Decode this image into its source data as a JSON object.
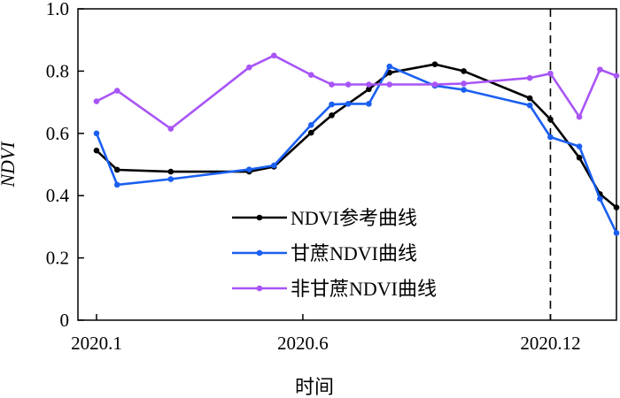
{
  "chart_data": {
    "type": "line",
    "xlabel": "时间",
    "ylabel": "NDVI",
    "ylim": [
      0,
      1.0
    ],
    "xlim": [
      0.55,
      13.6
    ],
    "x_ticks": [
      {
        "label": "2020.1",
        "value": 1
      },
      {
        "label": "2020.6",
        "value": 6
      },
      {
        "label": "2020.12",
        "value": 12
      }
    ],
    "y_ticks": [
      {
        "label": "0",
        "value": 0
      },
      {
        "label": "0.2",
        "value": 0.2
      },
      {
        "label": "0.4",
        "value": 0.4
      },
      {
        "label": "0.6",
        "value": 0.6
      },
      {
        "label": "0.8",
        "value": 0.8
      },
      {
        "label": "1.0",
        "value": 1.0
      }
    ],
    "vline": {
      "x": 12,
      "style": "dashed"
    },
    "grid": false,
    "legend_position": "bottom-center",
    "series": [
      {
        "name": "NDVI参考曲线",
        "color": "#000000",
        "points": [
          [
            1.0,
            0.545
          ],
          [
            1.5,
            0.483
          ],
          [
            2.8,
            0.477
          ],
          [
            4.7,
            0.477
          ],
          [
            5.3,
            0.493
          ],
          [
            6.2,
            0.602
          ],
          [
            6.7,
            0.658
          ],
          [
            7.6,
            0.742
          ],
          [
            8.1,
            0.795
          ],
          [
            9.2,
            0.822
          ],
          [
            9.9,
            0.8
          ],
          [
            11.5,
            0.713
          ],
          [
            12.0,
            0.645
          ],
          [
            12.7,
            0.522
          ],
          [
            13.2,
            0.405
          ],
          [
            13.6,
            0.362
          ]
        ]
      },
      {
        "name": "甘蔗NDVI曲线",
        "color": "#1a5ff0",
        "points": [
          [
            1.0,
            0.6
          ],
          [
            1.5,
            0.435
          ],
          [
            2.8,
            0.453
          ],
          [
            4.7,
            0.484
          ],
          [
            5.3,
            0.497
          ],
          [
            6.2,
            0.627
          ],
          [
            6.7,
            0.693
          ],
          [
            7.1,
            0.695
          ],
          [
            7.6,
            0.695
          ],
          [
            8.1,
            0.815
          ],
          [
            9.2,
            0.753
          ],
          [
            9.9,
            0.74
          ],
          [
            11.5,
            0.69
          ],
          [
            12.0,
            0.588
          ],
          [
            12.7,
            0.558
          ],
          [
            13.2,
            0.39
          ],
          [
            13.6,
            0.28
          ]
        ]
      },
      {
        "name": "非甘蔗NDVI曲线",
        "color": "#a855f7",
        "points": [
          [
            1.0,
            0.703
          ],
          [
            1.5,
            0.737
          ],
          [
            2.8,
            0.615
          ],
          [
            4.7,
            0.812
          ],
          [
            5.3,
            0.85
          ],
          [
            6.2,
            0.788
          ],
          [
            6.7,
            0.757
          ],
          [
            7.1,
            0.757
          ],
          [
            7.6,
            0.757
          ],
          [
            8.1,
            0.757
          ],
          [
            9.2,
            0.757
          ],
          [
            9.9,
            0.76
          ],
          [
            11.5,
            0.778
          ],
          [
            12.0,
            0.792
          ],
          [
            12.7,
            0.653
          ],
          [
            13.2,
            0.805
          ],
          [
            13.6,
            0.785
          ]
        ]
      }
    ]
  }
}
